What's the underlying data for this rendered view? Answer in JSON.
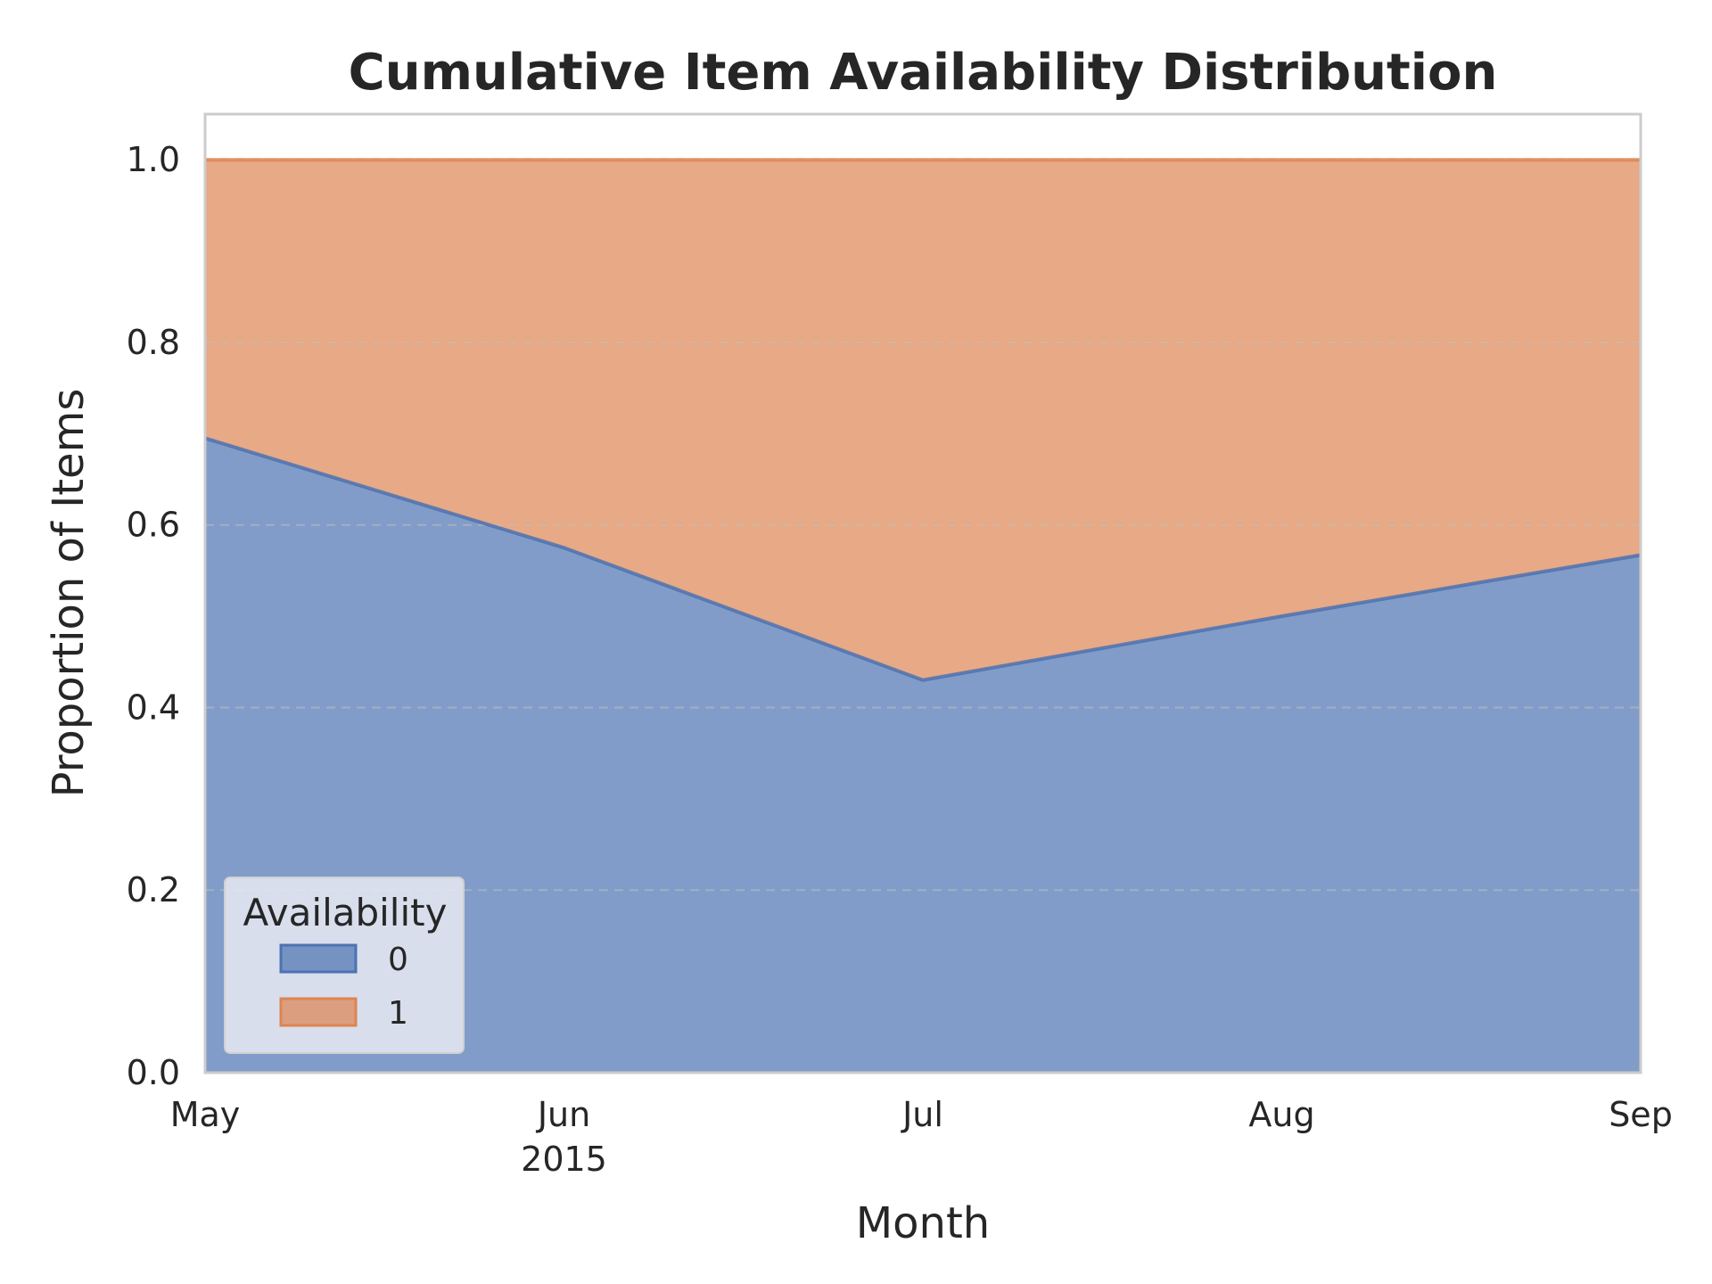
{
  "chart_data": {
    "type": "area",
    "stacked": true,
    "normalized": true,
    "title": "Cumulative Item Availability Distribution",
    "xlabel": "Month",
    "ylabel": "Proportion of Items",
    "x": [
      "May",
      "Jun",
      "Jul",
      "Aug",
      "Sep"
    ],
    "x_year_label": "2015",
    "ylim": [
      0,
      1.05
    ],
    "yticks": [
      "0.0",
      "0.2",
      "0.4",
      "0.6",
      "0.8",
      "1.0"
    ],
    "grid": "horizontal-dashed",
    "legend": {
      "title": "Availability",
      "placement": "lower-left"
    },
    "series": [
      {
        "name": "0",
        "color": "#4c72b0",
        "values": [
          0.695,
          0.575,
          0.43,
          0.5,
          0.567
        ]
      },
      {
        "name": "1",
        "color": "#dd8452",
        "values": [
          0.305,
          0.425,
          0.57,
          0.5,
          0.433
        ]
      }
    ],
    "colors": {
      "plot_background": "#ffffff",
      "frame": "#cccccc",
      "grid": "#c0c0c0"
    }
  }
}
